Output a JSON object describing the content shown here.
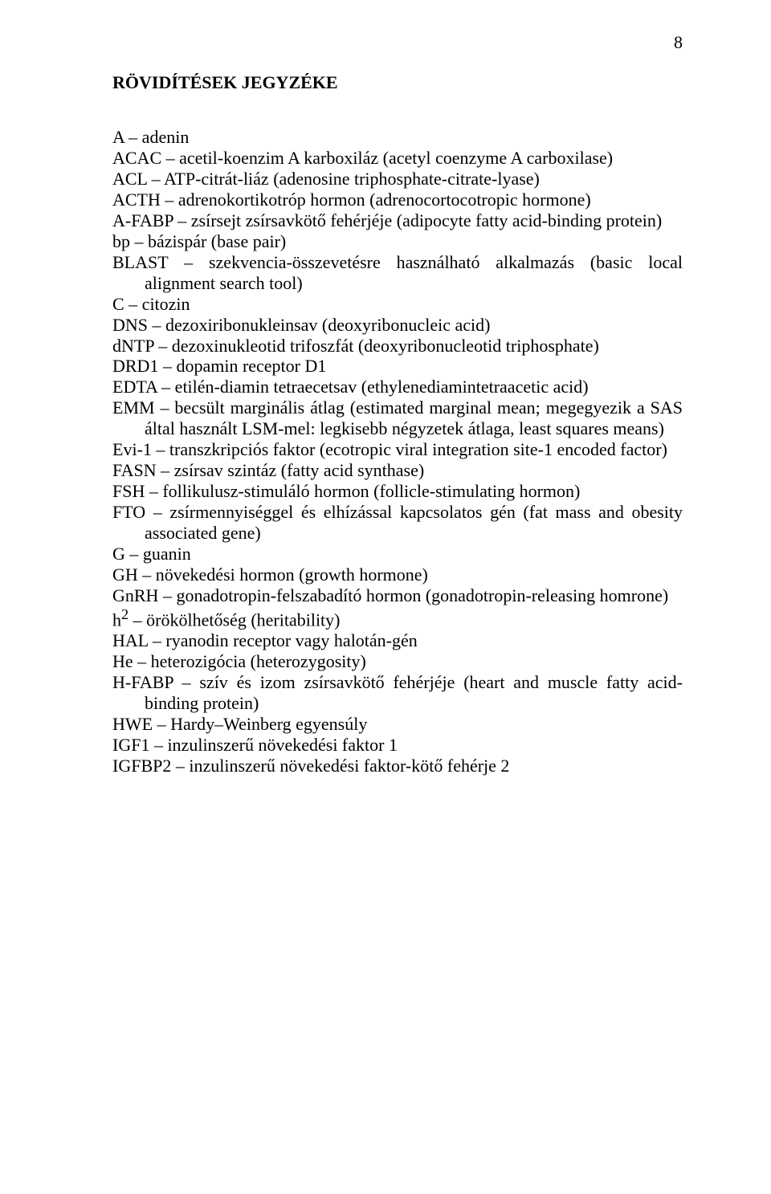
{
  "page_number": "8",
  "title": "RÖVIDÍTÉSEK JEGYZÉKE",
  "entries": [
    "A – adenin",
    "ACAC – acetil-koenzim A karboxiláz (acetyl coenzyme A carboxilase)",
    "ACL – ATP-citrát-liáz (adenosine triphosphate-citrate-lyase)",
    "ACTH – adrenokortikotróp hormon (adrenocortocotropic hormone)",
    "A-FABP – zsírsejt zsírsavkötő fehérjéje (adipocyte fatty acid-binding protein)",
    "bp – bázispár (base pair)",
    "BLAST – szekvencia-összevetésre használható alkalmazás (basic local alignment search tool)",
    "C – citozin",
    "DNS – dezoxiribonukleinsav (deoxyribonucleic acid)",
    "dNTP – dezoxinukleotid trifoszfát (deoxyribonucleotid triphosphate)",
    "DRD1 – dopamin receptor D1",
    "EDTA – etilén-diamin tetraecetsav (ethylenediamintetraacetic acid)",
    "EMM – becsült marginális átlag (estimated marginal mean; megegyezik a SAS által használt LSM-mel: legkisebb négyzetek átlaga, least squares means)",
    "Evi-1 – transzkripciós faktor (ecotropic viral integration site-1 encoded factor)",
    "FASN – zsírsav szintáz (fatty acid synthase)",
    "FSH – follikulusz-stimuláló hormon (follicle-stimulating hormon)",
    "FTO – zsírmennyiséggel és elhízással kapcsolatos gén (fat mass and obesity associated gene)",
    "G – guanin",
    "GH – növekedési hormon (growth hormone)",
    "GnRH – gonadotropin-felszabadító hormon (gonadotropin-releasing homrone)",
    "h<sup>2</sup> – örökölhetőség (heritability)",
    "HAL – ryanodin receptor vagy halotán-gén",
    "He – heterozigócia (heterozygosity)",
    "H-FABP – szív és izom zsírsavkötő fehérjéje (heart and muscle fatty acid-binding protein)",
    "HWE – Hardy–Weinberg egyensúly",
    "IGF1 – inzulinszerű növekedési faktor 1",
    "IGFBP2 – inzulinszerű növekedési faktor-kötő fehérje 2"
  ]
}
